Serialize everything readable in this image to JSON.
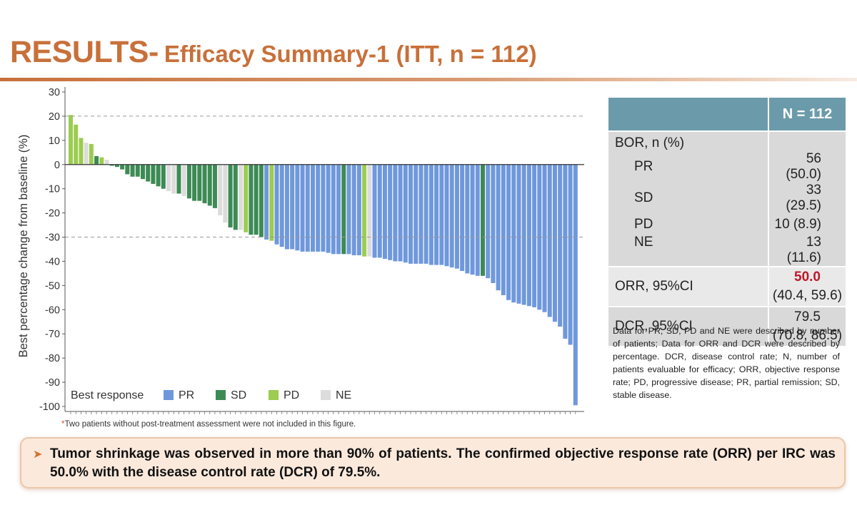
{
  "header": {
    "title_main": "RESULTS-",
    "title_sub": "Efficacy Summary-1 (ITT, n = 112)"
  },
  "chart_data": {
    "type": "bar",
    "ylabel": "Best percentage change from baseline (%)",
    "xlabel": "",
    "ylim": [
      -100,
      30
    ],
    "yticks": [
      30,
      20,
      10,
      0,
      -10,
      -20,
      -30,
      -40,
      -50,
      -60,
      -70,
      -80,
      -90,
      -100
    ],
    "reference_lines": [
      20,
      -30
    ],
    "legend": {
      "title": "Best response",
      "position": "bottom-left",
      "items": [
        {
          "key": "PR",
          "label": "PR",
          "color": "#6f98dc"
        },
        {
          "key": "SD",
          "label": "SD",
          "color": "#3d8a55"
        },
        {
          "key": "PD",
          "label": "PD",
          "color": "#9ccc50"
        },
        {
          "key": "NE",
          "label": "NE",
          "color": "#dcdcdc"
        }
      ]
    },
    "bars": [
      {
        "v": 20.5,
        "r": "PD"
      },
      {
        "v": 16.5,
        "r": "PD"
      },
      {
        "v": 11,
        "r": "PD"
      },
      {
        "v": 9,
        "r": "NE"
      },
      {
        "v": 8.5,
        "r": "PD"
      },
      {
        "v": 3.5,
        "r": "SD"
      },
      {
        "v": 3,
        "r": "PD"
      },
      {
        "v": 2,
        "r": "NE"
      },
      {
        "v": -0.5,
        "r": "SD"
      },
      {
        "v": -1,
        "r": "SD"
      },
      {
        "v": -2,
        "r": "SD"
      },
      {
        "v": -4,
        "r": "SD"
      },
      {
        "v": -5,
        "r": "SD"
      },
      {
        "v": -5,
        "r": "SD"
      },
      {
        "v": -6,
        "r": "SD"
      },
      {
        "v": -7,
        "r": "SD"
      },
      {
        "v": -8,
        "r": "SD"
      },
      {
        "v": -9,
        "r": "SD"
      },
      {
        "v": -10,
        "r": "SD"
      },
      {
        "v": -11,
        "r": "NE"
      },
      {
        "v": -12,
        "r": "NE"
      },
      {
        "v": -12,
        "r": "SD"
      },
      {
        "v": -13,
        "r": "NE"
      },
      {
        "v": -14,
        "r": "SD"
      },
      {
        "v": -15,
        "r": "SD"
      },
      {
        "v": -15,
        "r": "SD"
      },
      {
        "v": -16,
        "r": "SD"
      },
      {
        "v": -17,
        "r": "SD"
      },
      {
        "v": -18,
        "r": "SD"
      },
      {
        "v": -21,
        "r": "NE"
      },
      {
        "v": -24,
        "r": "NE"
      },
      {
        "v": -26,
        "r": "SD"
      },
      {
        "v": -27,
        "r": "SD"
      },
      {
        "v": -27,
        "r": "NE"
      },
      {
        "v": -28,
        "r": "PD"
      },
      {
        "v": -29,
        "r": "SD"
      },
      {
        "v": -29,
        "r": "SD"
      },
      {
        "v": -30,
        "r": "SD"
      },
      {
        "v": -31,
        "r": "PR"
      },
      {
        "v": -31.5,
        "r": "PD"
      },
      {
        "v": -33,
        "r": "PR"
      },
      {
        "v": -34,
        "r": "PR"
      },
      {
        "v": -35,
        "r": "PR"
      },
      {
        "v": -35,
        "r": "PR"
      },
      {
        "v": -35.5,
        "r": "PR"
      },
      {
        "v": -36,
        "r": "PR"
      },
      {
        "v": -36,
        "r": "PR"
      },
      {
        "v": -36,
        "r": "PR"
      },
      {
        "v": -36,
        "r": "PR"
      },
      {
        "v": -36,
        "r": "PR"
      },
      {
        "v": -36.5,
        "r": "PR"
      },
      {
        "v": -37,
        "r": "PR"
      },
      {
        "v": -37,
        "r": "PR"
      },
      {
        "v": -37,
        "r": "SD"
      },
      {
        "v": -37,
        "r": "PR"
      },
      {
        "v": -37.5,
        "r": "PR"
      },
      {
        "v": -37.5,
        "r": "PR"
      },
      {
        "v": -38,
        "r": "PD"
      },
      {
        "v": -38,
        "r": "NE"
      },
      {
        "v": -38.5,
        "r": "PR"
      },
      {
        "v": -38.5,
        "r": "PR"
      },
      {
        "v": -39,
        "r": "PR"
      },
      {
        "v": -39.5,
        "r": "PR"
      },
      {
        "v": -40,
        "r": "PR"
      },
      {
        "v": -40,
        "r": "PR"
      },
      {
        "v": -40.5,
        "r": "PR"
      },
      {
        "v": -41,
        "r": "PR"
      },
      {
        "v": -41,
        "r": "PR"
      },
      {
        "v": -41,
        "r": "PR"
      },
      {
        "v": -41,
        "r": "PR"
      },
      {
        "v": -41.5,
        "r": "PR"
      },
      {
        "v": -41.5,
        "r": "PR"
      },
      {
        "v": -41.5,
        "r": "PR"
      },
      {
        "v": -42,
        "r": "PR"
      },
      {
        "v": -42.5,
        "r": "PR"
      },
      {
        "v": -43,
        "r": "PR"
      },
      {
        "v": -44,
        "r": "PR"
      },
      {
        "v": -45,
        "r": "PR"
      },
      {
        "v": -45.5,
        "r": "PR"
      },
      {
        "v": -46,
        "r": "PR"
      },
      {
        "v": -46,
        "r": "SD"
      },
      {
        "v": -47,
        "r": "PR"
      },
      {
        "v": -49,
        "r": "PR"
      },
      {
        "v": -52,
        "r": "PR"
      },
      {
        "v": -54,
        "r": "PR"
      },
      {
        "v": -56,
        "r": "PR"
      },
      {
        "v": -57,
        "r": "PR"
      },
      {
        "v": -57.5,
        "r": "PR"
      },
      {
        "v": -58,
        "r": "PR"
      },
      {
        "v": -58.5,
        "r": "PR"
      },
      {
        "v": -59,
        "r": "PR"
      },
      {
        "v": -60,
        "r": "PR"
      },
      {
        "v": -61,
        "r": "PR"
      },
      {
        "v": -63,
        "r": "PR"
      },
      {
        "v": -65,
        "r": "PR"
      },
      {
        "v": -67,
        "r": "PR"
      },
      {
        "v": -72,
        "r": "PR"
      },
      {
        "v": -74.5,
        "r": "PR"
      },
      {
        "v": -99.5,
        "r": "PR"
      }
    ]
  },
  "footnote": {
    "marker": "*",
    "text": "Two patients without post-treatment assessment were not included in this figure."
  },
  "table": {
    "header": "N = 112",
    "bor_label": "BOR, n (%)",
    "rows": [
      {
        "label": "PR",
        "value": "56 (50.0)"
      },
      {
        "label": "SD",
        "value": "33 (29.5)"
      },
      {
        "label": "PD",
        "value": "10 (8.9)"
      },
      {
        "label": "NE",
        "value": "13 (11.6)"
      }
    ],
    "orr_label": "ORR, 95%CI",
    "orr_value": "50.0",
    "orr_ci": "(40.4, 59.6)",
    "dcr_label": "DCR, 95%CI",
    "dcr_value": "79.5",
    "dcr_ci": "(70.8, 86.5)"
  },
  "note": "Data for PR, SD, PD and NE were described by number of patients; Data for ORR and DCR were described by percentage. DCR, disease control rate; N, number of patients evaluable for efficacy; ORR, objective response rate; PD, progressive disease; PR, partial remission; SD, stable disease.",
  "callout": {
    "icon": "arrow-right-icon",
    "text": "Tumor shrinkage was observed in more than 90% of patients. The confirmed objective response rate (ORR) per IRC was 50.0% with the disease control rate (DCR) of 79.5%."
  }
}
